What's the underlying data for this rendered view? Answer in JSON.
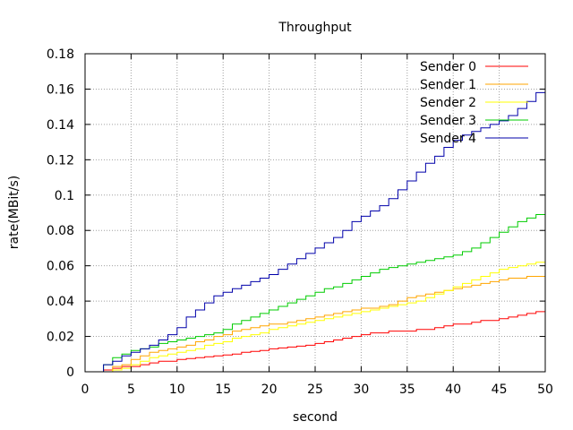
{
  "chart_data": {
    "type": "line",
    "title": "Throughput",
    "xlabel": "second",
    "ylabel": "rate(MBit/s)",
    "xlim": [
      0,
      50
    ],
    "ylim": [
      0,
      0.18
    ],
    "xticks": [
      "0",
      "5",
      "10",
      "15",
      "20",
      "25",
      "30",
      "35",
      "40",
      "45",
      "50"
    ],
    "yticks": [
      "0",
      "0.02",
      "0.04",
      "0.06",
      "0.08",
      "0.1",
      "0.12",
      "0.14",
      "0.16",
      "0.18"
    ],
    "grid": true,
    "legend_position": "top-right",
    "x": [
      1,
      2,
      3,
      4,
      5,
      6,
      7,
      8,
      9,
      10,
      11,
      12,
      13,
      14,
      15,
      16,
      17,
      18,
      19,
      20,
      21,
      22,
      23,
      24,
      25,
      26,
      27,
      28,
      29,
      30,
      31,
      32,
      33,
      34,
      35,
      36,
      37,
      38,
      39,
      40,
      41,
      42,
      43,
      44,
      45,
      46,
      47,
      48,
      49,
      50
    ],
    "series": [
      {
        "name": "Sender 0",
        "color": "#ff0000",
        "values": [
          0,
          0.001,
          0.002,
          0.003,
          0.003,
          0.004,
          0.005,
          0.006,
          0.006,
          0.007,
          0.0075,
          0.008,
          0.0085,
          0.009,
          0.0095,
          0.01,
          0.011,
          0.0115,
          0.012,
          0.013,
          0.0135,
          0.014,
          0.0145,
          0.015,
          0.016,
          0.017,
          0.018,
          0.019,
          0.02,
          0.021,
          0.022,
          0.022,
          0.023,
          0.023,
          0.023,
          0.024,
          0.024,
          0.025,
          0.026,
          0.027,
          0.027,
          0.028,
          0.029,
          0.029,
          0.03,
          0.031,
          0.032,
          0.033,
          0.034,
          0.035
        ]
      },
      {
        "name": "Sender 1",
        "color": "#ffa500",
        "values": [
          0,
          0,
          0.003,
          0.004,
          0.007,
          0.009,
          0.011,
          0.012,
          0.013,
          0.014,
          0.015,
          0.017,
          0.018,
          0.02,
          0.021,
          0.023,
          0.024,
          0.025,
          0.026,
          0.027,
          0.027,
          0.028,
          0.029,
          0.03,
          0.031,
          0.032,
          0.033,
          0.034,
          0.035,
          0.036,
          0.036,
          0.037,
          0.038,
          0.04,
          0.042,
          0.043,
          0.044,
          0.045,
          0.046,
          0.047,
          0.048,
          0.049,
          0.05,
          0.051,
          0.052,
          0.053,
          0.053,
          0.054,
          0.054,
          0.055
        ]
      },
      {
        "name": "Sender 2",
        "color": "#ffff00",
        "values": [
          0,
          0,
          0.001,
          0.002,
          0.004,
          0.006,
          0.008,
          0.009,
          0.01,
          0.011,
          0.012,
          0.013,
          0.015,
          0.016,
          0.017,
          0.019,
          0.02,
          0.021,
          0.022,
          0.024,
          0.025,
          0.026,
          0.027,
          0.028,
          0.029,
          0.03,
          0.031,
          0.032,
          0.033,
          0.034,
          0.035,
          0.036,
          0.037,
          0.038,
          0.039,
          0.04,
          0.042,
          0.044,
          0.046,
          0.048,
          0.05,
          0.052,
          0.054,
          0.056,
          0.058,
          0.059,
          0.06,
          0.061,
          0.062,
          0.063
        ]
      },
      {
        "name": "Sender 3",
        "color": "#00cc00",
        "values": [
          0,
          0.004,
          0.008,
          0.01,
          0.012,
          0.013,
          0.014,
          0.016,
          0.017,
          0.018,
          0.019,
          0.02,
          0.021,
          0.022,
          0.024,
          0.027,
          0.029,
          0.031,
          0.033,
          0.035,
          0.037,
          0.039,
          0.041,
          0.043,
          0.045,
          0.047,
          0.048,
          0.05,
          0.052,
          0.054,
          0.056,
          0.058,
          0.059,
          0.06,
          0.061,
          0.062,
          0.063,
          0.064,
          0.065,
          0.066,
          0.068,
          0.07,
          0.073,
          0.076,
          0.079,
          0.082,
          0.085,
          0.087,
          0.089,
          0.09
        ]
      },
      {
        "name": "Sender 4",
        "color": "#0000aa",
        "values": [
          0,
          0.004,
          0.006,
          0.009,
          0.011,
          0.013,
          0.015,
          0.018,
          0.021,
          0.025,
          0.031,
          0.035,
          0.039,
          0.043,
          0.045,
          0.047,
          0.049,
          0.051,
          0.053,
          0.055,
          0.058,
          0.061,
          0.064,
          0.067,
          0.07,
          0.073,
          0.076,
          0.08,
          0.085,
          0.088,
          0.091,
          0.094,
          0.098,
          0.103,
          0.108,
          0.113,
          0.118,
          0.122,
          0.127,
          0.131,
          0.134,
          0.136,
          0.138,
          0.14,
          0.142,
          0.145,
          0.149,
          0.153,
          0.158,
          0.163
        ]
      }
    ]
  }
}
